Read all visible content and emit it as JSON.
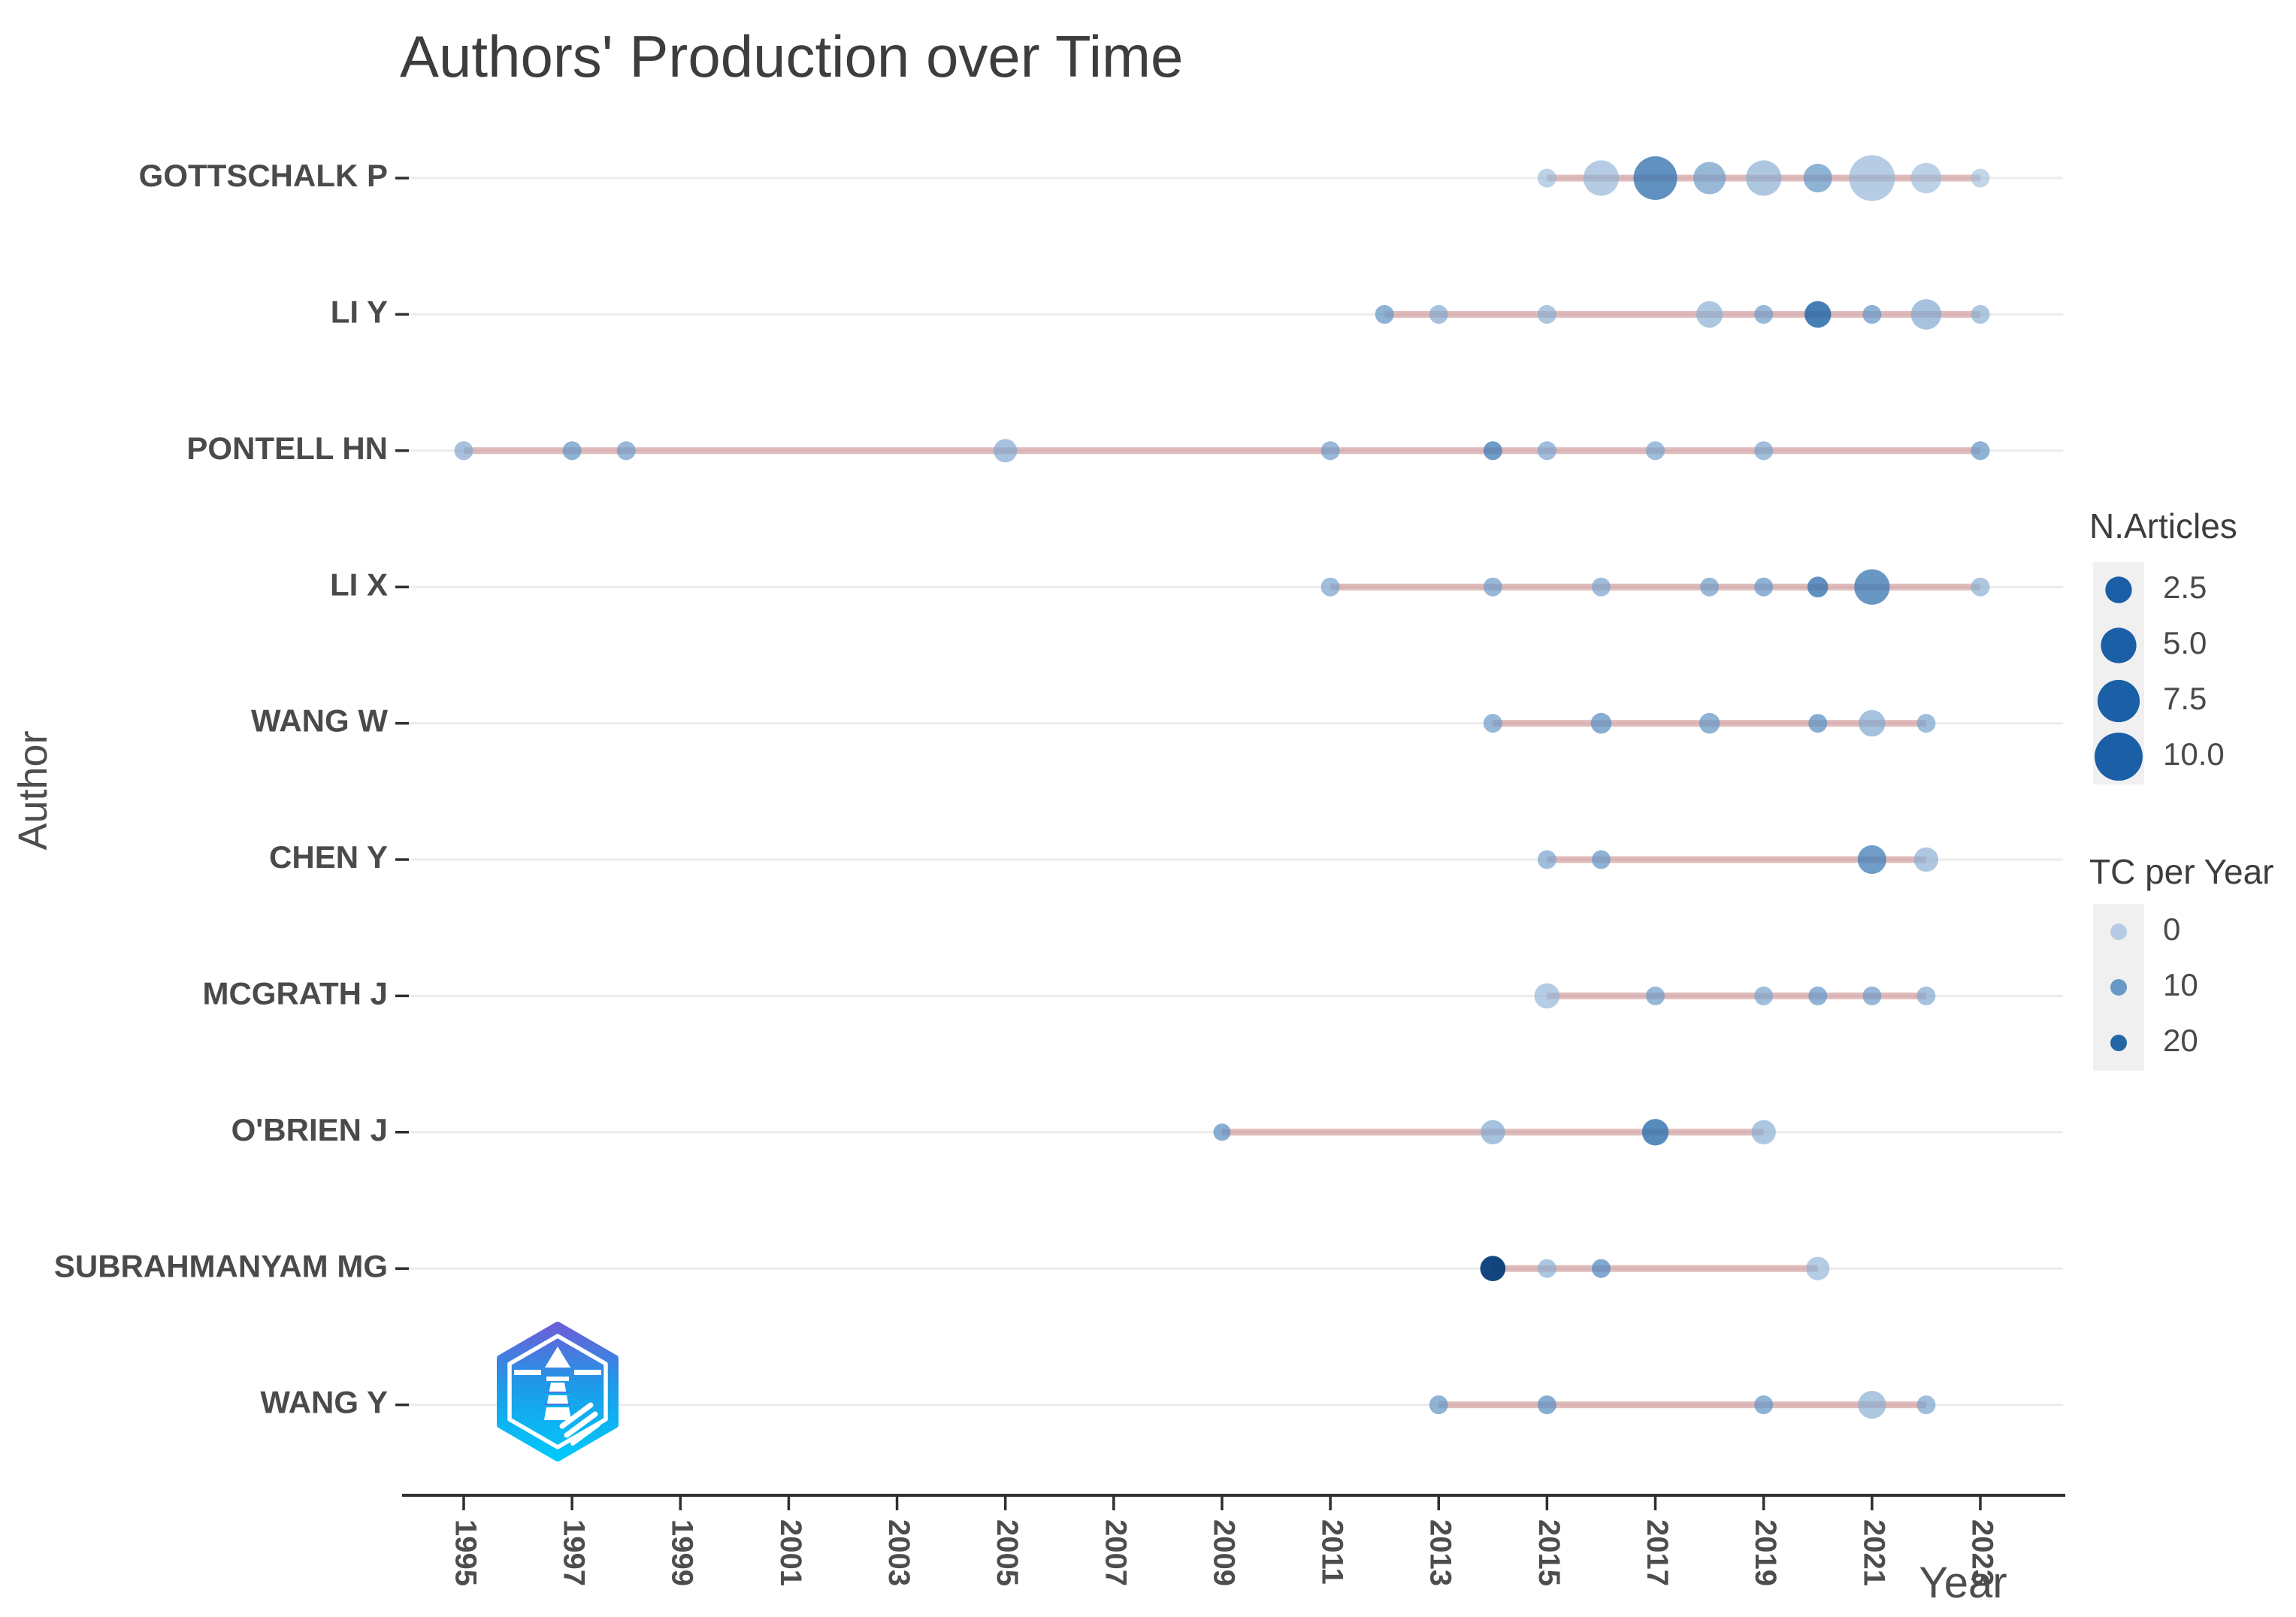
{
  "title": "Authors' Production over Time",
  "axes": {
    "x_label": "Year",
    "y_label": "Author"
  },
  "legend": {
    "size": {
      "title": "N.Articles",
      "entries": [
        {
          "value": 2.5,
          "label": "2.5"
        },
        {
          "value": 5.0,
          "label": "5.0"
        },
        {
          "value": 7.5,
          "label": "7.5"
        },
        {
          "value": 10.0,
          "label": "10.0"
        }
      ]
    },
    "color": {
      "title": "TC per Year",
      "entries": [
        {
          "value": 0,
          "label": "0"
        },
        {
          "value": 10,
          "label": "10"
        },
        {
          "value": 20,
          "label": "20"
        }
      ]
    }
  },
  "colors": {
    "title": "#3d3d3d",
    "text": "#4d4d4d",
    "axis": "#2f2f2f",
    "grid": "#ececec",
    "timeline": "#c47a7a",
    "legend_key_bg": "#f0f0f0",
    "size_dot": "#1b5fa6",
    "tc_scale": {
      "0": "#b2c9e3",
      "10": "#6092c3",
      "20": "#175ea0",
      "25": "#063c78"
    },
    "logo_gradient": [
      "#6a5fd8",
      "#1e9ae8",
      "#00c9fb"
    ]
  },
  "chart_data": {
    "type": "scatter",
    "title": "Authors' Production over Time",
    "xlabel": "Year",
    "ylabel": "Author",
    "x_ticks": [
      1995,
      1997,
      1999,
      2001,
      2003,
      2005,
      2007,
      2009,
      2011,
      2013,
      2015,
      2017,
      2019,
      2021,
      2023
    ],
    "x_range": [
      1994,
      2024
    ],
    "size_variable": "N.Articles",
    "color_variable": "TC per Year",
    "grid": true,
    "legend_position": "right",
    "series": [
      {
        "author": "GOTTSCHALK P",
        "timeline": [
          2015,
          2023
        ],
        "points": [
          {
            "year": 2015,
            "n_articles": 1,
            "tc_per_year": 3
          },
          {
            "year": 2016,
            "n_articles": 5,
            "tc_per_year": 4
          },
          {
            "year": 2017,
            "n_articles": 8,
            "tc_per_year": 15
          },
          {
            "year": 2018,
            "n_articles": 4,
            "tc_per_year": 8
          },
          {
            "year": 2019,
            "n_articles": 5,
            "tc_per_year": 5
          },
          {
            "year": 2020,
            "n_articles": 3,
            "tc_per_year": 9
          },
          {
            "year": 2021,
            "n_articles": 9,
            "tc_per_year": 4
          },
          {
            "year": 2022,
            "n_articles": 3.5,
            "tc_per_year": 3
          },
          {
            "year": 2023,
            "n_articles": 1,
            "tc_per_year": 2
          }
        ]
      },
      {
        "author": "LI Y",
        "timeline": [
          2012,
          2023
        ],
        "points": [
          {
            "year": 2012,
            "n_articles": 1,
            "tc_per_year": 9
          },
          {
            "year": 2013,
            "n_articles": 1,
            "tc_per_year": 6
          },
          {
            "year": 2015,
            "n_articles": 1,
            "tc_per_year": 5
          },
          {
            "year": 2018,
            "n_articles": 2.5,
            "tc_per_year": 5
          },
          {
            "year": 2019,
            "n_articles": 1,
            "tc_per_year": 8
          },
          {
            "year": 2020,
            "n_articles": 2.5,
            "tc_per_year": 18
          },
          {
            "year": 2021,
            "n_articles": 1,
            "tc_per_year": 9
          },
          {
            "year": 2022,
            "n_articles": 3.5,
            "tc_per_year": 6
          },
          {
            "year": 2023,
            "n_articles": 1,
            "tc_per_year": 5
          }
        ]
      },
      {
        "author": "PONTELL HN",
        "timeline": [
          1995,
          2023
        ],
        "points": [
          {
            "year": 1995,
            "n_articles": 1,
            "tc_per_year": 6
          },
          {
            "year": 1997,
            "n_articles": 1,
            "tc_per_year": 9
          },
          {
            "year": 1998,
            "n_articles": 1,
            "tc_per_year": 8
          },
          {
            "year": 2005,
            "n_articles": 1.8,
            "tc_per_year": 6
          },
          {
            "year": 2011,
            "n_articles": 1,
            "tc_per_year": 8
          },
          {
            "year": 2014,
            "n_articles": 1,
            "tc_per_year": 13
          },
          {
            "year": 2015,
            "n_articles": 1,
            "tc_per_year": 7
          },
          {
            "year": 2017,
            "n_articles": 1,
            "tc_per_year": 7
          },
          {
            "year": 2019,
            "n_articles": 1,
            "tc_per_year": 7
          },
          {
            "year": 2023,
            "n_articles": 1,
            "tc_per_year": 9
          }
        ]
      },
      {
        "author": "LI X",
        "timeline": [
          2011,
          2023
        ],
        "points": [
          {
            "year": 2011,
            "n_articles": 1,
            "tc_per_year": 7
          },
          {
            "year": 2014,
            "n_articles": 1,
            "tc_per_year": 8
          },
          {
            "year": 2016,
            "n_articles": 1,
            "tc_per_year": 7
          },
          {
            "year": 2018,
            "n_articles": 1,
            "tc_per_year": 8
          },
          {
            "year": 2019,
            "n_articles": 1,
            "tc_per_year": 9
          },
          {
            "year": 2020,
            "n_articles": 1.3,
            "tc_per_year": 15
          },
          {
            "year": 2021,
            "n_articles": 5,
            "tc_per_year": 14
          },
          {
            "year": 2023,
            "n_articles": 1,
            "tc_per_year": 5
          }
        ]
      },
      {
        "author": "WANG W",
        "timeline": [
          2014,
          2022
        ],
        "points": [
          {
            "year": 2014,
            "n_articles": 1,
            "tc_per_year": 8
          },
          {
            "year": 2016,
            "n_articles": 1.3,
            "tc_per_year": 10
          },
          {
            "year": 2018,
            "n_articles": 1.3,
            "tc_per_year": 9
          },
          {
            "year": 2020,
            "n_articles": 1,
            "tc_per_year": 10
          },
          {
            "year": 2021,
            "n_articles": 2.5,
            "tc_per_year": 6
          },
          {
            "year": 2022,
            "n_articles": 1,
            "tc_per_year": 7
          }
        ]
      },
      {
        "author": "CHEN Y",
        "timeline": [
          2015,
          2022
        ],
        "points": [
          {
            "year": 2015,
            "n_articles": 1,
            "tc_per_year": 7
          },
          {
            "year": 2016,
            "n_articles": 1,
            "tc_per_year": 9
          },
          {
            "year": 2021,
            "n_articles": 3,
            "tc_per_year": 13
          },
          {
            "year": 2022,
            "n_articles": 2,
            "tc_per_year": 5
          }
        ]
      },
      {
        "author": "MCGRATH J",
        "timeline": [
          2015,
          2022
        ],
        "points": [
          {
            "year": 2015,
            "n_articles": 2.2,
            "tc_per_year": 4
          },
          {
            "year": 2017,
            "n_articles": 1,
            "tc_per_year": 8
          },
          {
            "year": 2019,
            "n_articles": 1,
            "tc_per_year": 7
          },
          {
            "year": 2020,
            "n_articles": 1,
            "tc_per_year": 9
          },
          {
            "year": 2021,
            "n_articles": 1,
            "tc_per_year": 8
          },
          {
            "year": 2022,
            "n_articles": 1,
            "tc_per_year": 6
          }
        ]
      },
      {
        "author": "O'BRIEN J",
        "timeline": [
          2009,
          2019
        ],
        "points": [
          {
            "year": 2009,
            "n_articles": 0.8,
            "tc_per_year": 10
          },
          {
            "year": 2014,
            "n_articles": 2,
            "tc_per_year": 6
          },
          {
            "year": 2017,
            "n_articles": 2.5,
            "tc_per_year": 16
          },
          {
            "year": 2019,
            "n_articles": 2,
            "tc_per_year": 5
          }
        ]
      },
      {
        "author": "SUBRAHMANYAM MG",
        "timeline": [
          2014,
          2020
        ],
        "points": [
          {
            "year": 2014,
            "n_articles": 2.2,
            "tc_per_year": 25
          },
          {
            "year": 2015,
            "n_articles": 1,
            "tc_per_year": 5
          },
          {
            "year": 2016,
            "n_articles": 1,
            "tc_per_year": 11
          },
          {
            "year": 2020,
            "n_articles": 1.8,
            "tc_per_year": 4
          }
        ]
      },
      {
        "author": "WANG Y",
        "timeline": [
          2013,
          2022
        ],
        "points": [
          {
            "year": 2013,
            "n_articles": 1,
            "tc_per_year": 9
          },
          {
            "year": 2015,
            "n_articles": 1,
            "tc_per_year": 10
          },
          {
            "year": 2019,
            "n_articles": 1,
            "tc_per_year": 9
          },
          {
            "year": 2021,
            "n_articles": 2.8,
            "tc_per_year": 5
          },
          {
            "year": 2022,
            "n_articles": 1,
            "tc_per_year": 7
          }
        ]
      }
    ]
  }
}
